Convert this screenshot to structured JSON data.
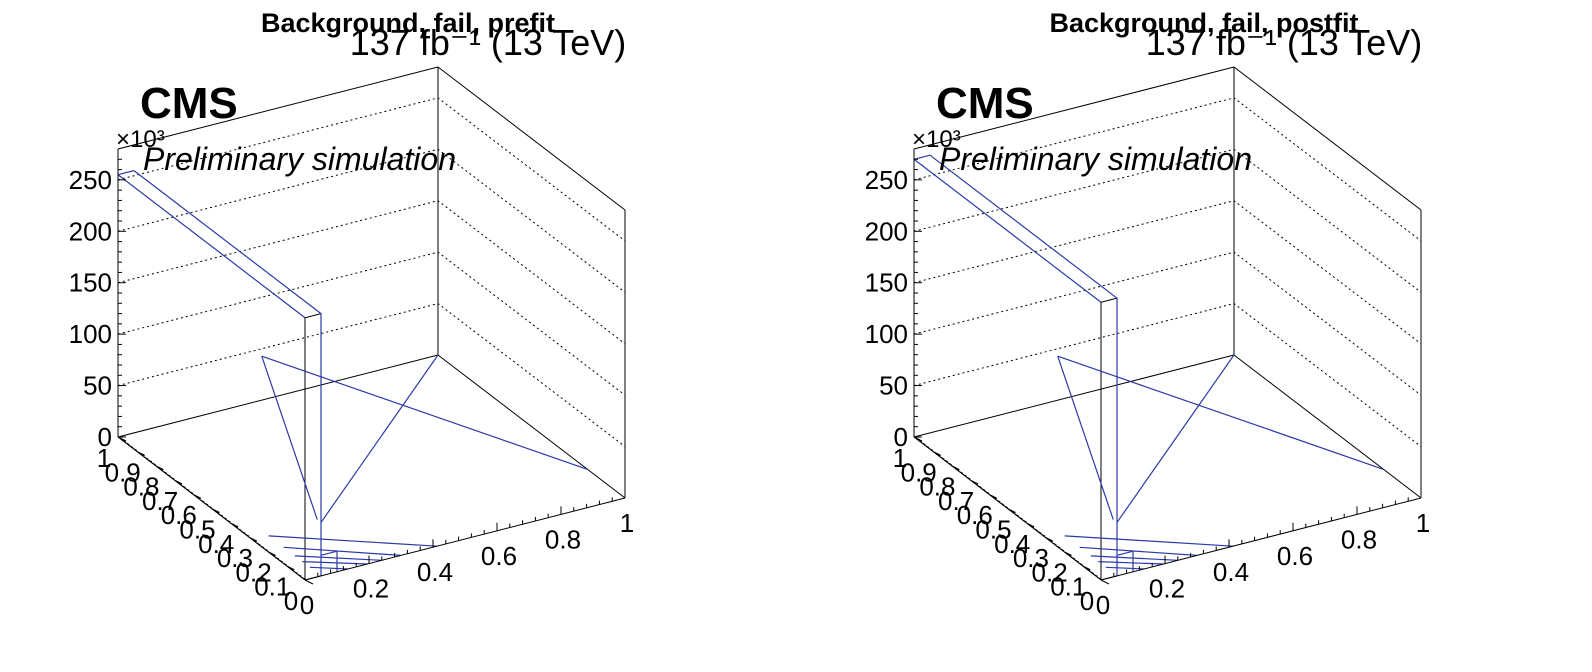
{
  "chart_data": [
    {
      "type": "lego3d",
      "title": "Background, fail, prefit",
      "lumi_label": "137 fb⁻¹ (13 TeV)",
      "experiment": "CMS",
      "status": "Preliminary simulation",
      "z_multiplier": "×10³",
      "z_ticks": [
        "0",
        "50",
        "100",
        "150",
        "200",
        "250"
      ],
      "zlim": [
        0,
        280
      ],
      "x_ticks": [
        "0",
        "0.2",
        "0.4",
        "0.6",
        "0.8",
        "1"
      ],
      "y_ticks": [
        "0",
        "0.1",
        "0.2",
        "0.3",
        "0.4",
        "0.5",
        "0.6",
        "0.7",
        "0.8",
        "0.9",
        "1"
      ],
      "grid": true,
      "front_bar_height": 255,
      "back_level": 52
    },
    {
      "type": "lego3d",
      "title": "Background, fail, postfit",
      "lumi_label": "137 fb⁻¹ (13 TeV)",
      "experiment": "CMS",
      "status": "Preliminary simulation",
      "z_multiplier": "×10³",
      "z_ticks": [
        "0",
        "50",
        "100",
        "150",
        "200",
        "250"
      ],
      "zlim": [
        0,
        280
      ],
      "x_ticks": [
        "0",
        "0.2",
        "0.4",
        "0.6",
        "0.8",
        "1"
      ],
      "y_ticks": [
        "0",
        "0.1",
        "0.2",
        "0.3",
        "0.4",
        "0.5",
        "0.6",
        "0.7",
        "0.8",
        "0.9",
        "1"
      ],
      "grid": true,
      "front_bar_height": 270,
      "back_level": 52
    }
  ]
}
